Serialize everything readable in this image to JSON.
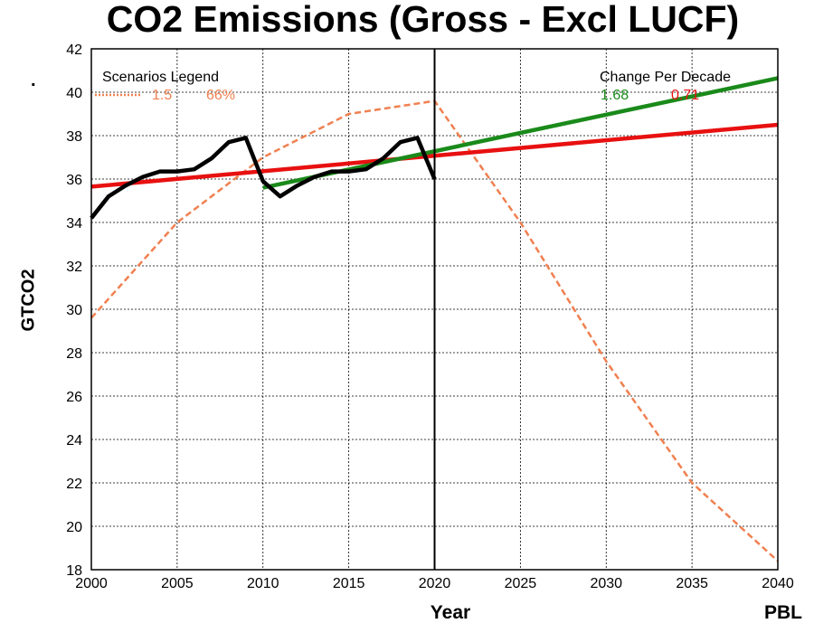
{
  "chart_data": {
    "type": "line",
    "title": "CO2 Emissions (Gross - Excl LUCF)",
    "xlabel": "Year",
    "ylabel": "GTCO2",
    "source": "PBL",
    "marker": ".",
    "xlim": [
      2000,
      2040
    ],
    "ylim": [
      18,
      42
    ],
    "x_ticks": [
      2000,
      2005,
      2010,
      2015,
      2020,
      2025,
      2030,
      2035,
      2040
    ],
    "y_ticks": [
      18,
      20,
      22,
      24,
      26,
      28,
      30,
      32,
      34,
      36,
      38,
      40,
      42
    ],
    "grid": true,
    "legend": {
      "title": "Scenarios Legend",
      "placement": "top-left",
      "entries": [
        {
          "label": "1.5",
          "value": "66%",
          "color": "#f08050"
        }
      ]
    },
    "change_per_decade": {
      "title": "Change Per Decade",
      "placement": "top-right",
      "values": [
        {
          "value": "1.68",
          "color": "#1a8a1a"
        },
        {
          "value": "0.71",
          "color": "#e81010"
        }
      ]
    },
    "vertical_line_x": 2020,
    "series": [
      {
        "style": "solid",
        "color": "#000000",
        "x": [
          2000,
          2001,
          2002,
          2003,
          2004,
          2005,
          2006,
          2007,
          2008,
          2009,
          2010,
          2011,
          2012,
          2013,
          2014,
          2015,
          2016,
          2017,
          2018,
          2019,
          2020
        ],
        "y": [
          34.2,
          35.2,
          35.7,
          36.1,
          36.35,
          36.35,
          36.45,
          36.95,
          37.7,
          37.9,
          35.9,
          35.2,
          35.7,
          36.1,
          36.35,
          36.35,
          36.45,
          36.95,
          37.7,
          37.9,
          36.0
        ]
      },
      {
        "style": "dashed",
        "color": "#f08050",
        "x": [
          2000,
          2005,
          2010,
          2015,
          2020,
          2025,
          2030,
          2035,
          2040
        ],
        "y": [
          29.6,
          34.0,
          37.0,
          39.0,
          39.6,
          34.0,
          27.6,
          22.0,
          18.4
        ]
      },
      {
        "style": "trend",
        "color": "#e81010",
        "x": [
          2000,
          2040
        ],
        "y": [
          35.65,
          38.5
        ]
      },
      {
        "style": "trend",
        "color": "#1a8a1a",
        "x": [
          2010,
          2040
        ],
        "y": [
          35.6,
          40.65
        ]
      }
    ]
  }
}
